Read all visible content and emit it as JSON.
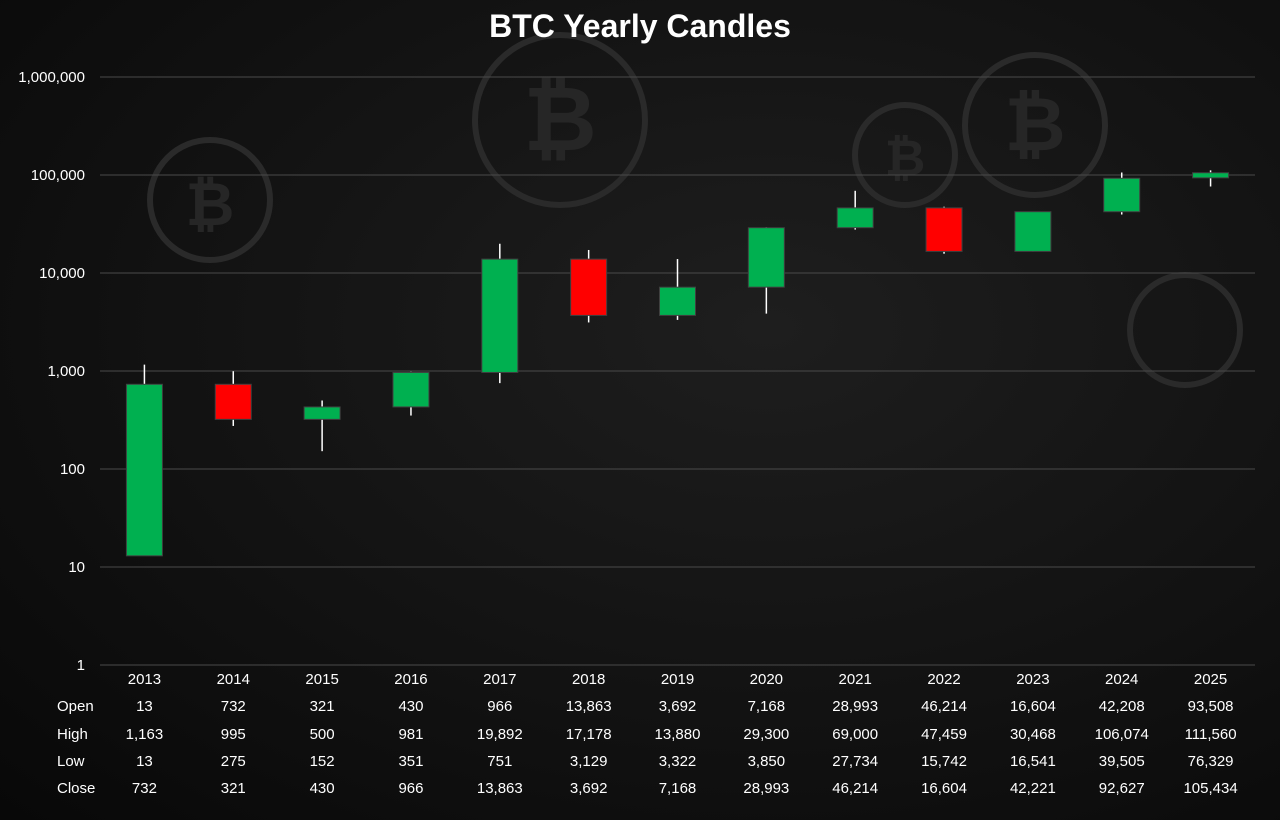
{
  "chart_data": {
    "type": "candlestick",
    "title": "BTC Yearly Candles",
    "y_scale": "log",
    "ylim": [
      1,
      1000000
    ],
    "y_ticks": [
      1,
      10,
      100,
      1000,
      10000,
      100000,
      1000000
    ],
    "y_tick_labels": [
      "1",
      "10",
      "100",
      "1,000",
      "10,000",
      "100,000",
      "1,000,000"
    ],
    "grid": true,
    "up_color": "#00b050",
    "down_color": "#ff0000",
    "categories": [
      "2013",
      "2014",
      "2015",
      "2016",
      "2017",
      "2018",
      "2019",
      "2020",
      "2021",
      "2022",
      "2023",
      "2024",
      "2025"
    ],
    "series": [
      {
        "name": "Open",
        "values": [
          13,
          732,
          321,
          430,
          966,
          13863,
          3692,
          7168,
          28993,
          46214,
          16604,
          42208,
          93508
        ]
      },
      {
        "name": "High",
        "values": [
          1163,
          995,
          500,
          981,
          19892,
          17178,
          13880,
          29300,
          69000,
          47459,
          30468,
          106074,
          111560
        ]
      },
      {
        "name": "Low",
        "values": [
          13,
          275,
          152,
          351,
          751,
          3129,
          3322,
          3850,
          27734,
          15742,
          16541,
          39505,
          76329
        ]
      },
      {
        "name": "Close",
        "values": [
          732,
          321,
          430,
          966,
          13863,
          3692,
          7168,
          28993,
          46214,
          16604,
          42221,
          92627,
          105434
        ]
      }
    ],
    "table": {
      "row_labels": [
        "Open",
        "High",
        "Low",
        "Close"
      ],
      "rows": [
        [
          "13",
          "732",
          "321",
          "430",
          "966",
          "13,863",
          "3,692",
          "7,168",
          "28,993",
          "46,214",
          "16,604",
          "42,208",
          "93,508"
        ],
        [
          "1,163",
          "995",
          "500",
          "981",
          "19,892",
          "17,178",
          "13,880",
          "29,300",
          "69,000",
          "47,459",
          "30,468",
          "106,074",
          "111,560"
        ],
        [
          "13",
          "275",
          "152",
          "351",
          "751",
          "3,129",
          "3,322",
          "3,850",
          "27,734",
          "15,742",
          "16,541",
          "39,505",
          "76,329"
        ],
        [
          "732",
          "321",
          "430",
          "966",
          "13,863",
          "3,692",
          "7,168",
          "28,993",
          "46,214",
          "16,604",
          "42,221",
          "92,627",
          "105,434"
        ]
      ]
    }
  }
}
